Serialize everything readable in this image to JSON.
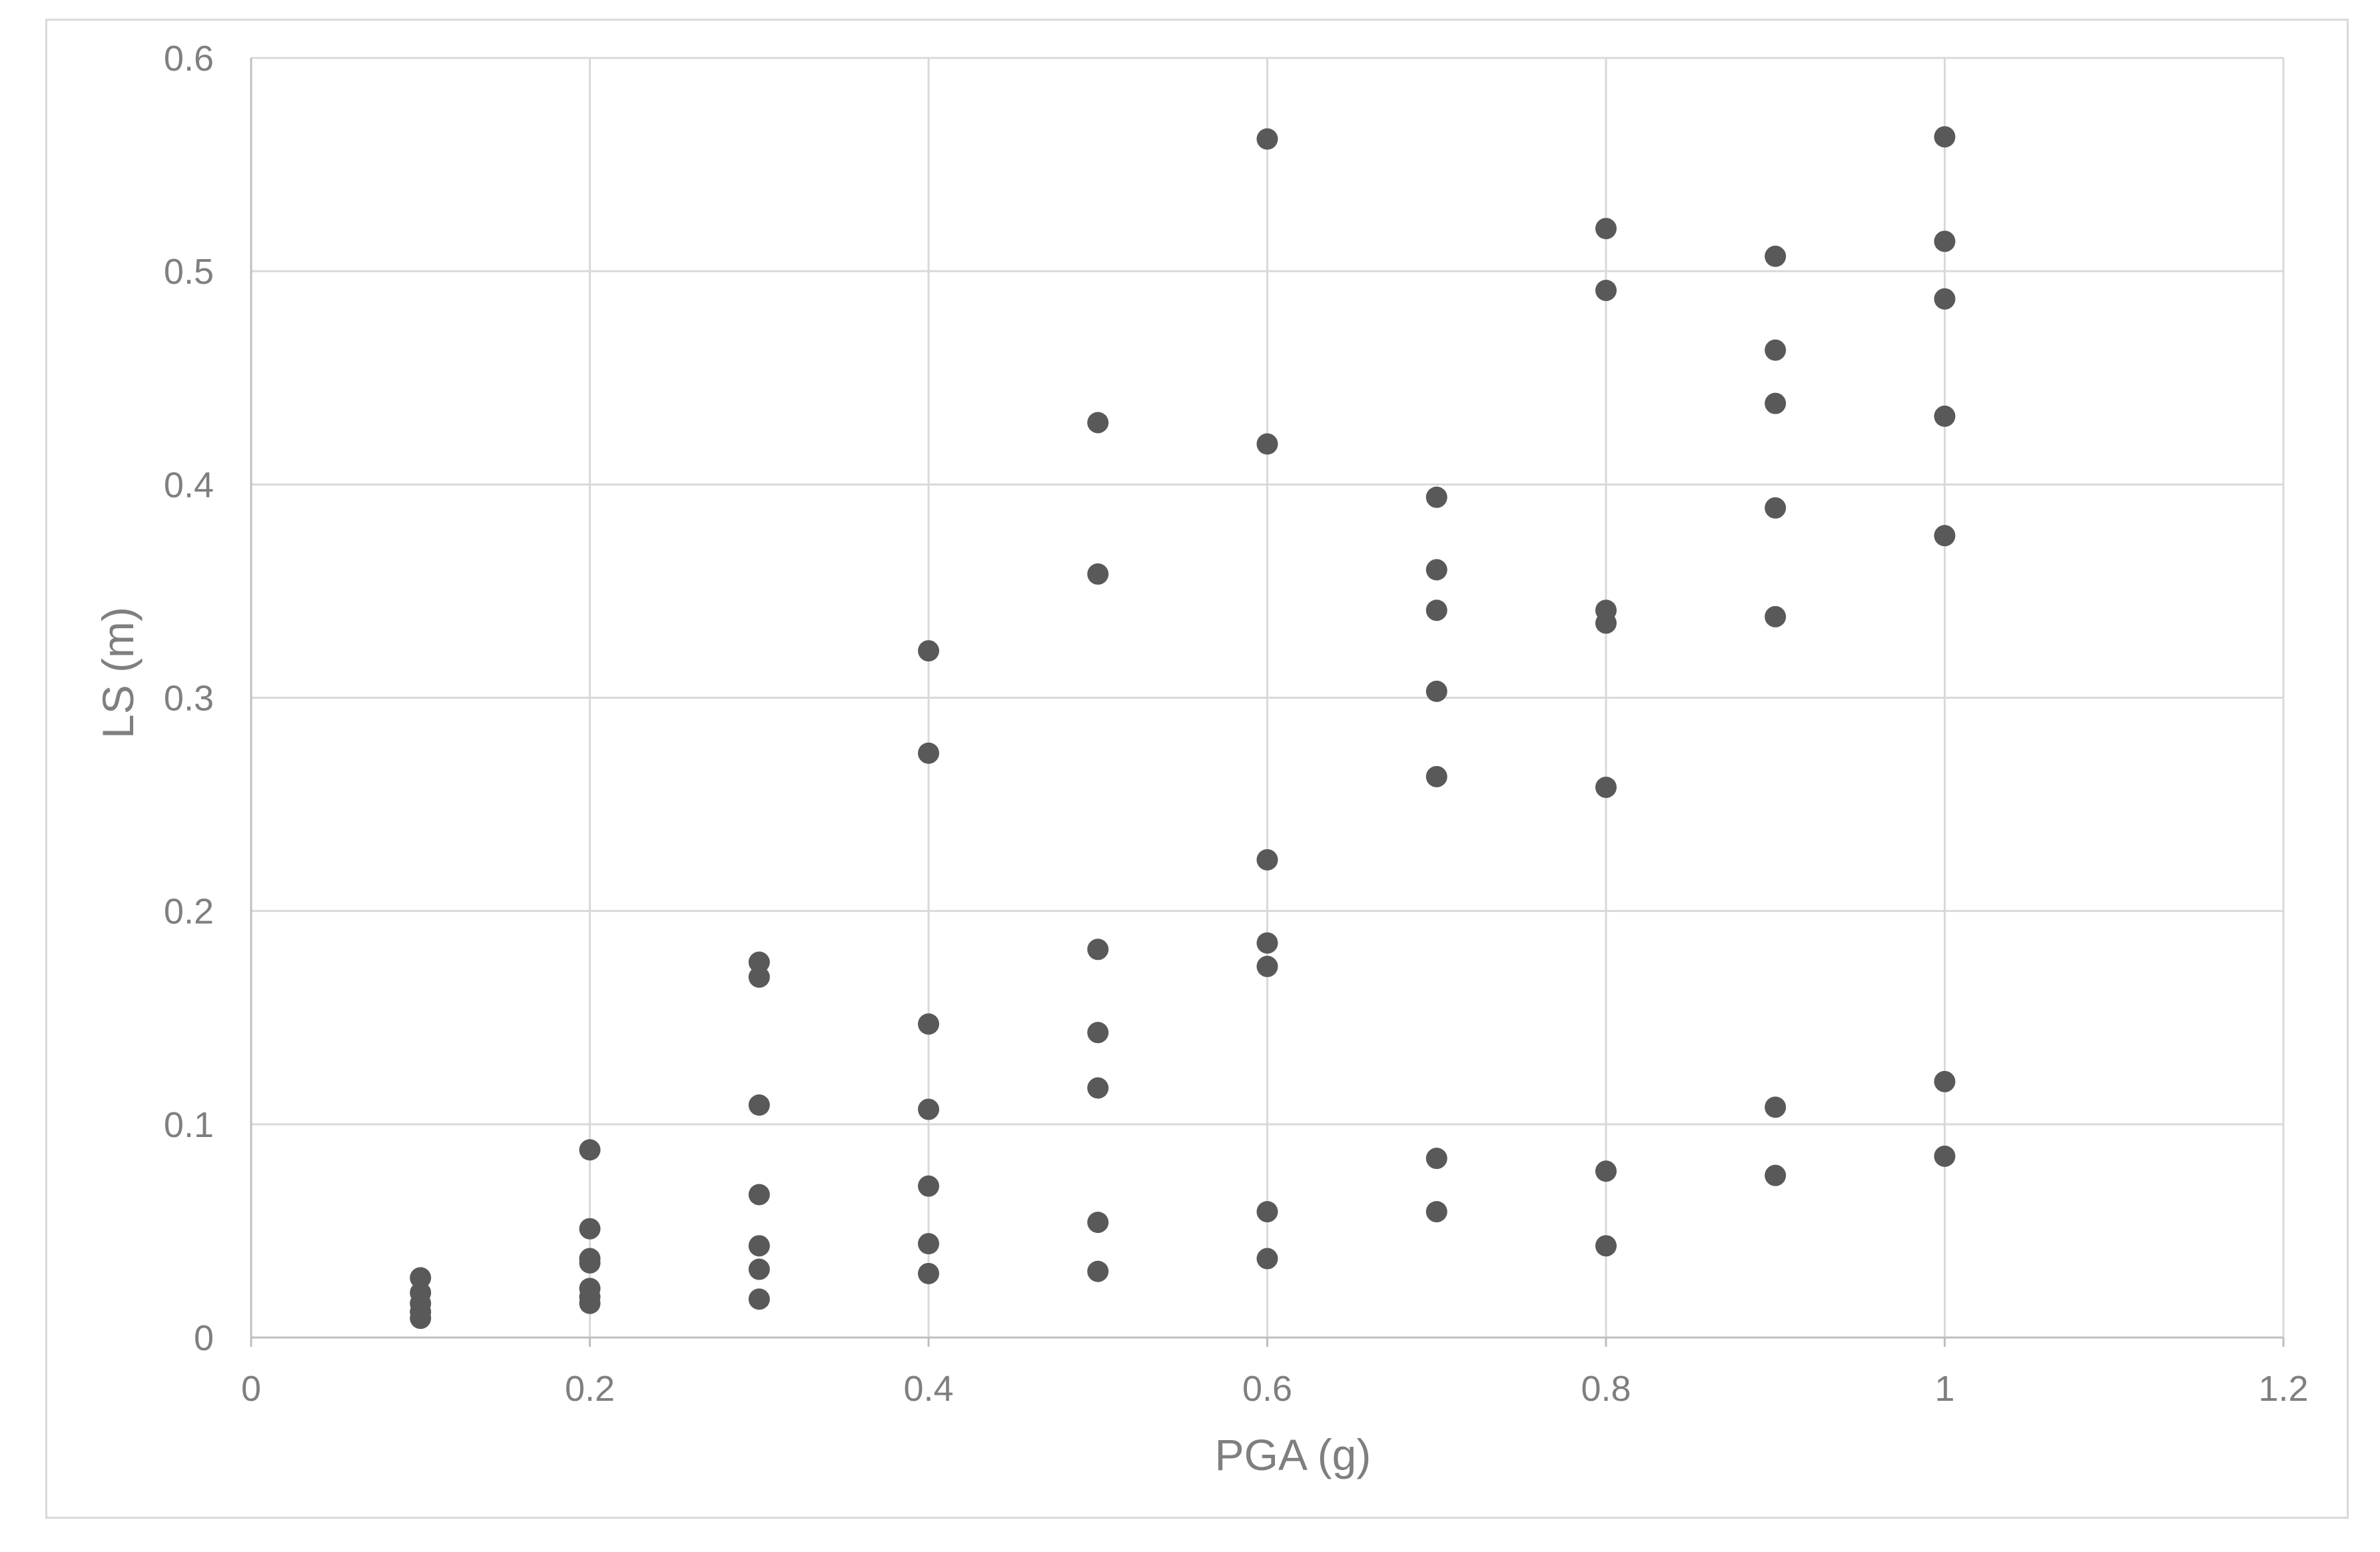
{
  "chart_data": {
    "type": "scatter",
    "title": "",
    "xlabel": "PGA (g)",
    "ylabel": "LS (m)",
    "xlim": [
      0,
      1.2
    ],
    "ylim": [
      0,
      0.6
    ],
    "x_ticks": [
      0,
      0.2,
      0.4,
      0.6,
      0.8,
      1,
      1.2
    ],
    "y_ticks": [
      0,
      0.1,
      0.2,
      0.3,
      0.4,
      0.5,
      0.6
    ],
    "x_tick_labels": [
      "0",
      "0.2",
      "0.4",
      "0.6",
      "0.8",
      "1",
      "1.2"
    ],
    "y_tick_labels": [
      "0",
      "0.1",
      "0.2",
      "0.3",
      "0.4",
      "0.5",
      "0.6"
    ],
    "grid": true,
    "legend": "none",
    "marker_color": "#595959",
    "series": [
      {
        "points": [
          [
            0.1,
            0.028
          ],
          [
            0.1,
            0.021
          ],
          [
            0.1,
            0.016
          ],
          [
            0.1,
            0.012
          ],
          [
            0.1,
            0.009
          ],
          [
            0.2,
            0.088
          ],
          [
            0.2,
            0.051
          ],
          [
            0.2,
            0.037
          ],
          [
            0.2,
            0.035
          ],
          [
            0.2,
            0.023
          ],
          [
            0.2,
            0.019
          ],
          [
            0.2,
            0.016
          ],
          [
            0.3,
            0.176
          ],
          [
            0.3,
            0.169
          ],
          [
            0.3,
            0.109
          ],
          [
            0.3,
            0.067
          ],
          [
            0.3,
            0.043
          ],
          [
            0.3,
            0.032
          ],
          [
            0.3,
            0.018
          ],
          [
            0.4,
            0.322
          ],
          [
            0.4,
            0.274
          ],
          [
            0.4,
            0.147
          ],
          [
            0.4,
            0.107
          ],
          [
            0.4,
            0.071
          ],
          [
            0.4,
            0.044
          ],
          [
            0.4,
            0.03
          ],
          [
            0.5,
            0.429
          ],
          [
            0.5,
            0.358
          ],
          [
            0.5,
            0.182
          ],
          [
            0.5,
            0.143
          ],
          [
            0.5,
            0.117
          ],
          [
            0.5,
            0.054
          ],
          [
            0.5,
            0.031
          ],
          [
            0.6,
            0.562
          ],
          [
            0.6,
            0.419
          ],
          [
            0.6,
            0.224
          ],
          [
            0.6,
            0.185
          ],
          [
            0.6,
            0.174
          ],
          [
            0.6,
            0.059
          ],
          [
            0.6,
            0.037
          ],
          [
            0.7,
            0.394
          ],
          [
            0.7,
            0.36
          ],
          [
            0.7,
            0.341
          ],
          [
            0.7,
            0.303
          ],
          [
            0.7,
            0.263
          ],
          [
            0.7,
            0.084
          ],
          [
            0.7,
            0.059
          ],
          [
            0.8,
            0.52
          ],
          [
            0.8,
            0.491
          ],
          [
            0.8,
            0.341
          ],
          [
            0.8,
            0.335
          ],
          [
            0.8,
            0.258
          ],
          [
            0.8,
            0.078
          ],
          [
            0.8,
            0.043
          ],
          [
            0.9,
            0.507
          ],
          [
            0.9,
            0.463
          ],
          [
            0.9,
            0.438
          ],
          [
            0.9,
            0.389
          ],
          [
            0.9,
            0.338
          ],
          [
            0.9,
            0.108
          ],
          [
            0.9,
            0.076
          ],
          [
            1.0,
            0.563
          ],
          [
            1.0,
            0.514
          ],
          [
            1.0,
            0.487
          ],
          [
            1.0,
            0.432
          ],
          [
            1.0,
            0.376
          ],
          [
            1.0,
            0.12
          ],
          [
            1.0,
            0.085
          ]
        ]
      }
    ]
  }
}
